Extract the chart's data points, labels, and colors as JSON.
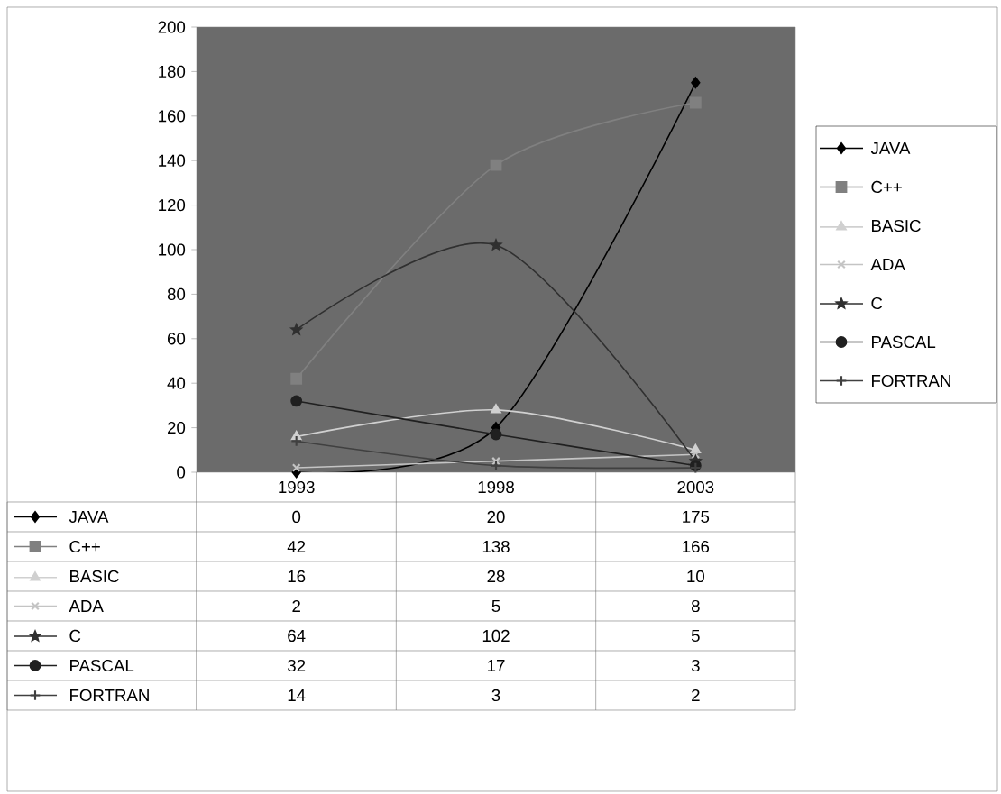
{
  "chart_data": {
    "type": "line",
    "categories": [
      "1993",
      "1998",
      "2003"
    ],
    "series": [
      {
        "name": "JAVA",
        "color": "#000000",
        "marker": "diamond",
        "values": [
          0,
          20,
          175
        ]
      },
      {
        "name": "C++",
        "color": "#808080",
        "marker": "square",
        "values": [
          42,
          138,
          166
        ]
      },
      {
        "name": "BASIC",
        "color": "#d0d0d0",
        "marker": "triangle",
        "values": [
          16,
          28,
          10
        ]
      },
      {
        "name": "ADA",
        "color": "#c4c4c4",
        "marker": "cross",
        "values": [
          2,
          5,
          8
        ]
      },
      {
        "name": "C",
        "color": "#303030",
        "marker": "star",
        "values": [
          64,
          102,
          5
        ]
      },
      {
        "name": "PASCAL",
        "color": "#202020",
        "marker": "circle",
        "values": [
          32,
          17,
          3
        ]
      },
      {
        "name": "FORTRAN",
        "color": "#404040",
        "marker": "plus",
        "values": [
          14,
          3,
          2
        ]
      }
    ],
    "ylim": [
      0,
      200
    ],
    "yticks": [
      0,
      20,
      40,
      60,
      80,
      100,
      120,
      140,
      160,
      180,
      200
    ],
    "legend": "right",
    "data_labels": true,
    "line_style": "solid",
    "grid": false
  }
}
